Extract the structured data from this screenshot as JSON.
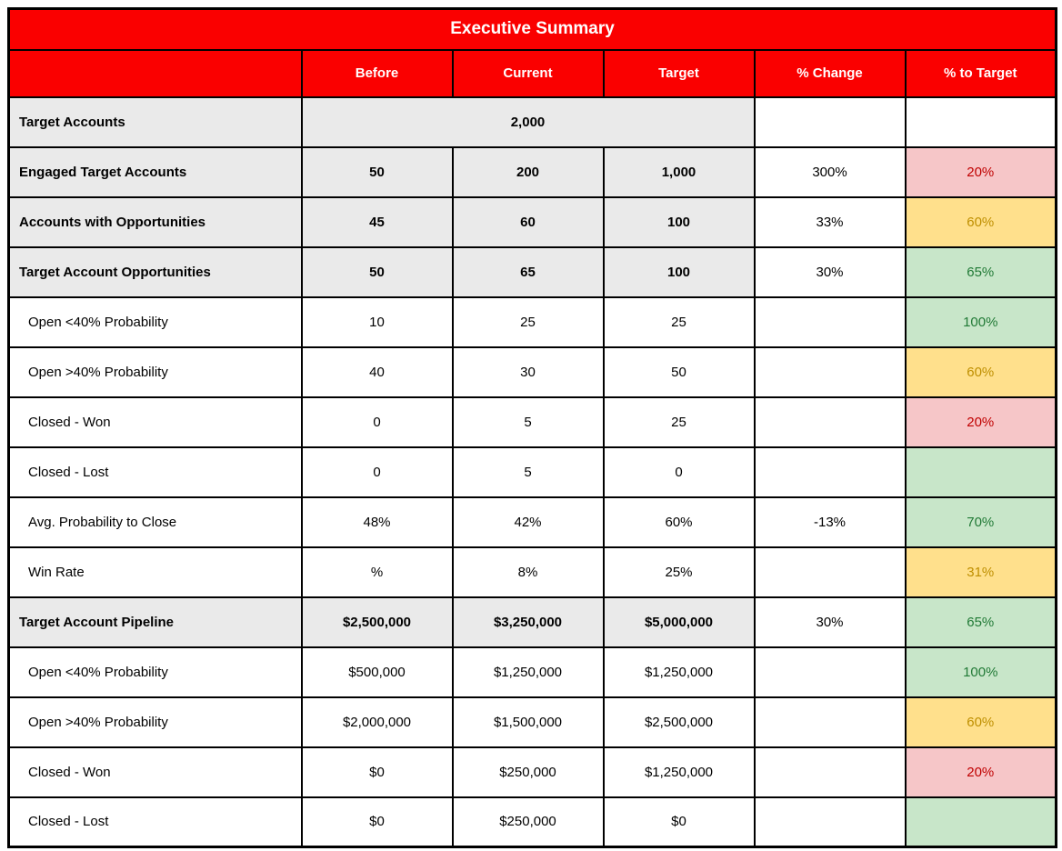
{
  "title": "Executive Summary",
  "columns": [
    "",
    "Before",
    "Current",
    "Target",
    "% Change",
    "% to Target"
  ],
  "colors": {
    "header_bg": "#FA0000",
    "header_text": "#FFFFFF",
    "section_bg": "#EAEAEA",
    "red_bg": "#F6C6C8",
    "red_text": "#C00000",
    "yellow_bg": "#FFE08C",
    "yellow_text": "#BF8F00",
    "green_bg": "#C8E6C9",
    "green_text": "#217A36"
  },
  "chart_data": {
    "type": "table",
    "title": "Executive Summary",
    "columns": [
      "",
      "Before",
      "Current",
      "Target",
      "% Change",
      "% to Target"
    ],
    "rows": [
      {
        "label": "Target Accounts",
        "section": true,
        "merged": "2,000",
        "change": "",
        "to_target": "",
        "status": ""
      },
      {
        "label": "Engaged Target Accounts",
        "section": true,
        "before": "50",
        "current": "200",
        "target": "1,000",
        "change": "300%",
        "to_target": "20%",
        "status": "red"
      },
      {
        "label": "Accounts with Opportunities",
        "section": true,
        "before": "45",
        "current": "60",
        "target": "100",
        "change": "33%",
        "to_target": "60%",
        "status": "yellow"
      },
      {
        "label": "Target Account Opportunities",
        "section": true,
        "before": "50",
        "current": "65",
        "target": "100",
        "change": "30%",
        "to_target": "65%",
        "status": "green"
      },
      {
        "label": "Open <40% Probability",
        "section": false,
        "before": "10",
        "current": "25",
        "target": "25",
        "change": "",
        "to_target": "100%",
        "status": "green"
      },
      {
        "label": "Open >40% Probability",
        "section": false,
        "before": "40",
        "current": "30",
        "target": "50",
        "change": "",
        "to_target": "60%",
        "status": "yellow"
      },
      {
        "label": "Closed - Won",
        "section": false,
        "before": "0",
        "current": "5",
        "target": "25",
        "change": "",
        "to_target": "20%",
        "status": "red"
      },
      {
        "label": "Closed - Lost",
        "section": false,
        "before": "0",
        "current": "5",
        "target": "0",
        "change": "",
        "to_target": "",
        "status": "green"
      },
      {
        "label": "Avg. Probability to Close",
        "section": false,
        "before": "48%",
        "current": "42%",
        "target": "60%",
        "change": "-13%",
        "to_target": "70%",
        "status": "green"
      },
      {
        "label": "Win Rate",
        "section": false,
        "before": "%",
        "current": "8%",
        "target": "25%",
        "change": "",
        "to_target": "31%",
        "status": "yellow"
      },
      {
        "label": "Target Account Pipeline",
        "section": true,
        "before": "$2,500,000",
        "current": "$3,250,000",
        "target": "$5,000,000",
        "change": "30%",
        "to_target": "65%",
        "status": "green"
      },
      {
        "label": "Open <40% Probability",
        "section": false,
        "before": "$500,000",
        "current": "$1,250,000",
        "target": "$1,250,000",
        "change": "",
        "to_target": "100%",
        "status": "green"
      },
      {
        "label": "Open >40% Probability",
        "section": false,
        "before": "$2,000,000",
        "current": "$1,500,000",
        "target": "$2,500,000",
        "change": "",
        "to_target": "60%",
        "status": "yellow"
      },
      {
        "label": "Closed - Won",
        "section": false,
        "before": "$0",
        "current": "$250,000",
        "target": "$1,250,000",
        "change": "",
        "to_target": "20%",
        "status": "red"
      },
      {
        "label": "Closed - Lost",
        "section": false,
        "before": "$0",
        "current": "$250,000",
        "target": "$0",
        "change": "",
        "to_target": "",
        "status": "green"
      }
    ]
  }
}
